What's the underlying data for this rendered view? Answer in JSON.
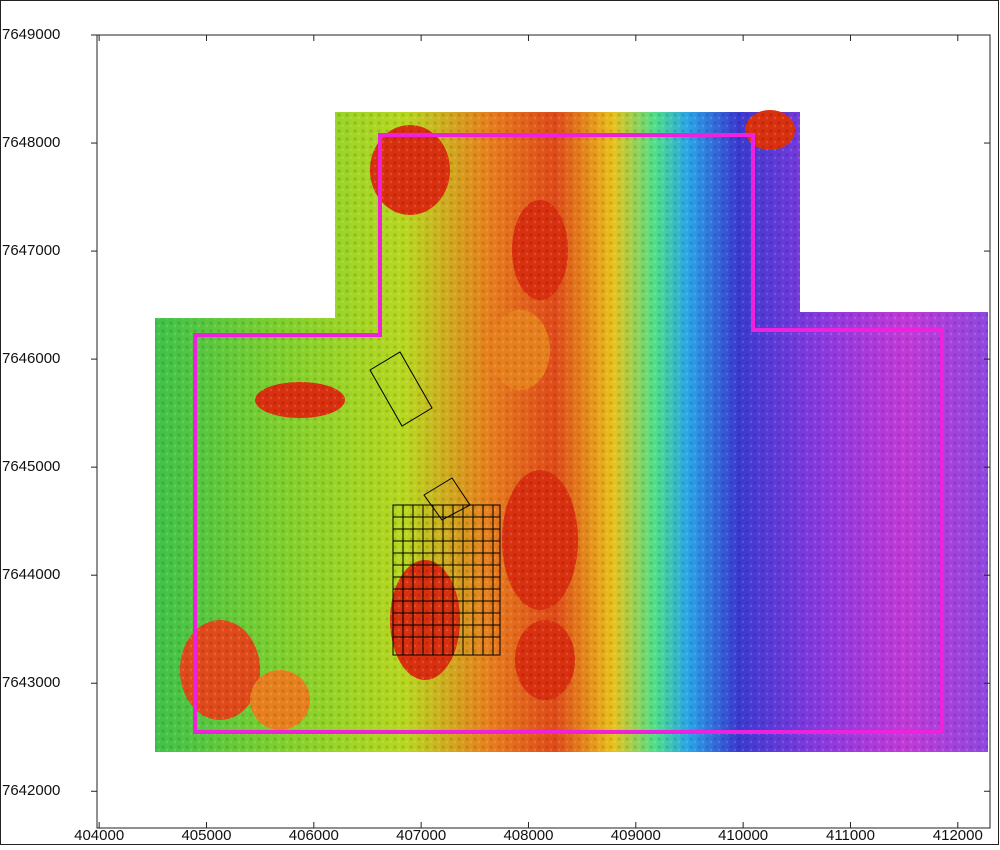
{
  "chart_data": {
    "type": "map",
    "xlim": [
      403980,
      412300
    ],
    "ylim": [
      7641660,
      7649000
    ],
    "xticks": [
      404000,
      405000,
      406000,
      407000,
      408000,
      409000,
      410000,
      411000,
      412000
    ],
    "yticks": [
      7642000,
      7643000,
      7644000,
      7645000,
      7646000,
      7647000,
      7648000,
      7649000
    ]
  }
}
